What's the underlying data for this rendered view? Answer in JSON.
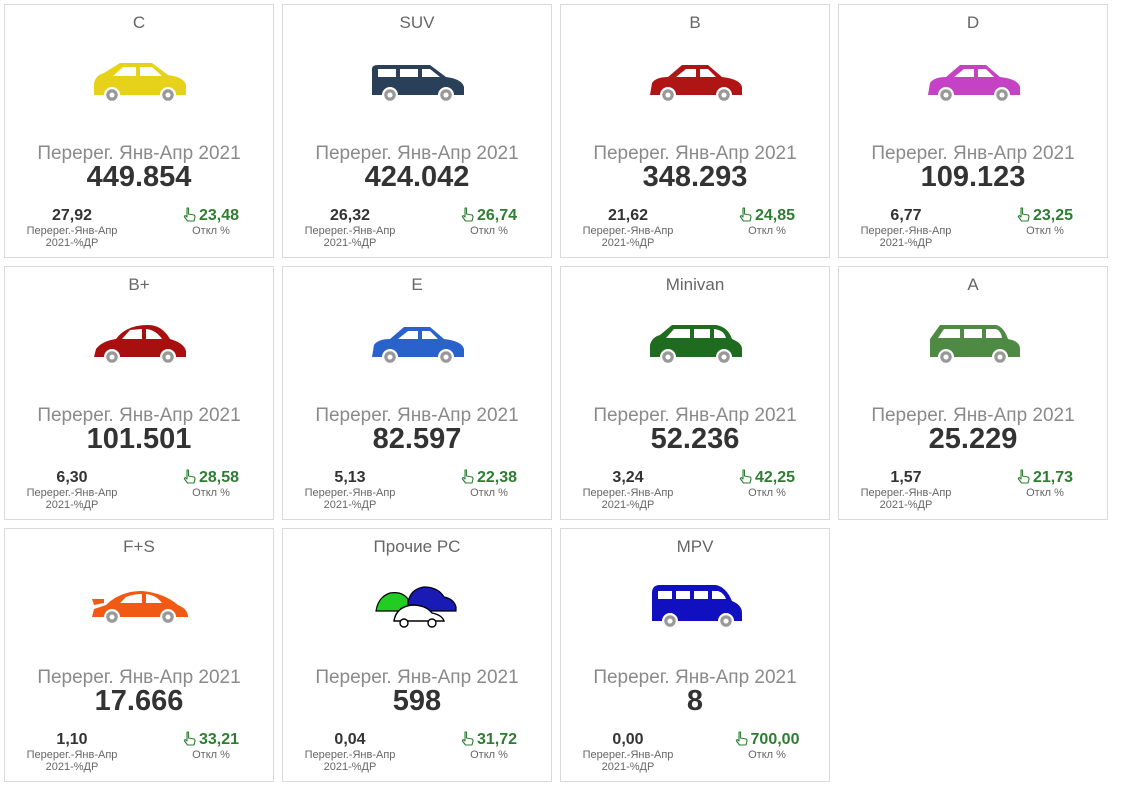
{
  "cards": [
    {
      "category": "C",
      "period_label": "Перерег. Янв-Апр 2021",
      "value": "449.854",
      "share_value": "27,92",
      "share_label": "Перерег.-Янв-Апр 2021-%ДР",
      "dev_value": "23,48",
      "dev_label": "Откл %",
      "icon": "hatchback-car-icon",
      "color": "#e6d219"
    },
    {
      "category": "SUV",
      "period_label": "Перерег. Янв-Апр 2021",
      "value": "424.042",
      "share_value": "26,32",
      "share_label": "Перерег.-Янв-Апр 2021-%ДР",
      "dev_value": "26,74",
      "dev_label": "Откл %",
      "icon": "suv-car-icon",
      "color": "#2a4059"
    },
    {
      "category": "B",
      "period_label": "Перерег. Янв-Апр 2021",
      "value": "348.293",
      "share_value": "21,62",
      "share_label": "Перерег.-Янв-Апр 2021-%ДР",
      "dev_value": "24,85",
      "dev_label": "Откл %",
      "icon": "sedan-car-icon",
      "color": "#b01515"
    },
    {
      "category": "D",
      "period_label": "Перерег. Янв-Апр 2021",
      "value": "109.123",
      "share_value": "6,77",
      "share_label": "Перерег.-Янв-Апр 2021-%ДР",
      "dev_value": "23,25",
      "dev_label": "Откл %",
      "icon": "sedan-car-icon",
      "color": "#c542c5"
    },
    {
      "category": "B+",
      "period_label": "Перерег. Янв-Апр 2021",
      "value": "101.501",
      "share_value": "6,30",
      "share_label": "Перерег.-Янв-Апр 2021-%ДР",
      "dev_value": "28,58",
      "dev_label": "Откл %",
      "icon": "beetle-car-icon",
      "color": "#a80f0f"
    },
    {
      "category": "E",
      "period_label": "Перерег. Янв-Апр 2021",
      "value": "82.597",
      "share_value": "5,13",
      "share_label": "Перерег.-Янв-Апр 2021-%ДР",
      "dev_value": "22,38",
      "dev_label": "Откл %",
      "icon": "sedan-car-icon",
      "color": "#2a62cc"
    },
    {
      "category": "Minivan",
      "period_label": "Перерег. Янв-Апр 2021",
      "value": "52.236",
      "share_value": "3,24",
      "share_label": "Перерег.-Янв-Апр 2021-%ДР",
      "dev_value": "42,25",
      "dev_label": "Откл %",
      "icon": "minivan-car-icon",
      "color": "#1f6b1f"
    },
    {
      "category": "A",
      "period_label": "Перерег. Янв-Апр 2021",
      "value": "25.229",
      "share_value": "1,57",
      "share_label": "Перерег.-Янв-Апр 2021-%ДР",
      "dev_value": "21,73",
      "dev_label": "Откл %",
      "icon": "compact-car-icon",
      "color": "#4e8a43"
    },
    {
      "category": "F+S",
      "period_label": "Перерег. Янв-Апр 2021",
      "value": "17.666",
      "share_value": "1,10",
      "share_label": "Перерег.-Янв-Апр 2021-%ДР",
      "dev_value": "33,21",
      "dev_label": "Откл %",
      "icon": "sports-car-icon",
      "color": "#f05a14"
    },
    {
      "category": "Прочие PC",
      "period_label": "Перерег. Янв-Апр 2021",
      "value": "598",
      "share_value": "0,04",
      "share_label": "Перерег.-Янв-Апр 2021-%ДР",
      "dev_value": "31,72",
      "dev_label": "Откл %",
      "icon": "multiple-cars-icon",
      "color": "#1a1ab5"
    },
    {
      "category": "MPV",
      "period_label": "Перерег. Янв-Апр 2021",
      "value": "8",
      "share_value": "0,00",
      "share_label": "Перерег.-Янв-Апр 2021-%ДР",
      "dev_value": "700,00",
      "dev_label": "Откл %",
      "icon": "van-icon",
      "color": "#1010c0"
    }
  ],
  "colors": {
    "deviation_text": "#2e7d32",
    "border": "#d9d9d9"
  }
}
